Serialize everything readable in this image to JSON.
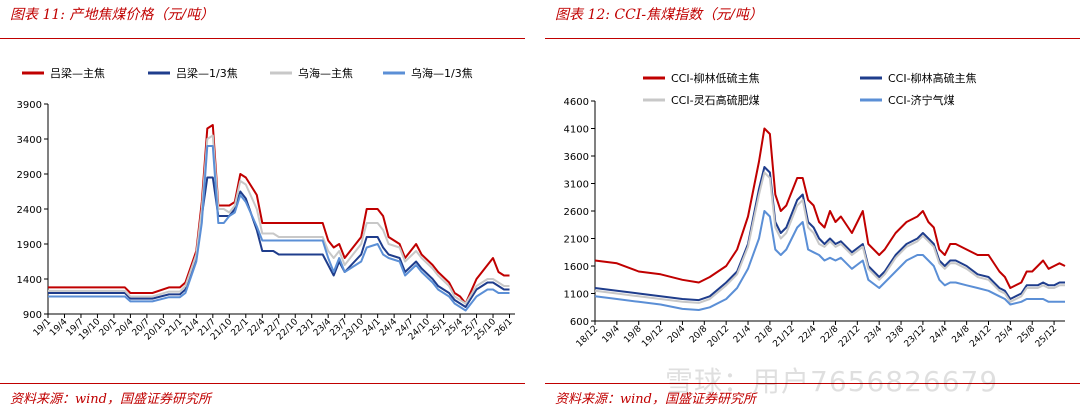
{
  "panels": {
    "left": {
      "title": "图表 11:  产地焦煤价格（元/吨）",
      "source": "资料来源：wind，国盛证券研究所"
    },
    "right": {
      "title": "图表 12:  CCI-焦煤指数（元/吨）",
      "source": "资料来源：wind，国盛证券研究所"
    }
  },
  "watermark": "雪球：用户7656826679",
  "chart_data": [
    {
      "type": "line",
      "grid": false,
      "legend": "top",
      "ylim": [
        900,
        3900
      ],
      "yticks": [
        900,
        1400,
        1900,
        2400,
        2900,
        3400,
        3900
      ],
      "x_tick_labels": [
        "19/1",
        "19/4",
        "19/7",
        "19/10",
        "20/1",
        "20/4",
        "20/7",
        "20/10",
        "21/1",
        "21/4",
        "21/7",
        "21/10",
        "22/1",
        "22/4",
        "22/7",
        "22/10",
        "23/1",
        "23/4",
        "23/7",
        "23/10",
        "24/1",
        "24/4",
        "24/7",
        "24/10",
        "25/1",
        "25/4",
        "25/7",
        "25/10",
        "26/1"
      ],
      "x_tick_index": [
        0,
        3,
        6,
        9,
        12,
        15,
        18,
        21,
        24,
        27,
        30,
        33,
        36,
        39,
        42,
        45,
        48,
        51,
        54,
        57,
        60,
        63,
        66,
        69,
        72,
        75,
        78,
        81,
        84
      ],
      "x_range": [
        0,
        85
      ],
      "series": [
        {
          "name": "吕梁—主焦",
          "color": "#c00000",
          "x": [
            0,
            14,
            15,
            19,
            22,
            24,
            25,
            27,
            28,
            29,
            30,
            31,
            32,
            33,
            34,
            35,
            36,
            38,
            39,
            41,
            42,
            45,
            48,
            50,
            51,
            52,
            53,
            54,
            57,
            58,
            60,
            61,
            62,
            64,
            65,
            67,
            68,
            70,
            71,
            73,
            74,
            75,
            76,
            78,
            79,
            80,
            81,
            82,
            83,
            84
          ],
          "y": [
            1280,
            1280,
            1200,
            1200,
            1280,
            1280,
            1350,
            1800,
            2500,
            3550,
            3600,
            2450,
            2450,
            2450,
            2500,
            2900,
            2850,
            2600,
            2200,
            2200,
            2200,
            2200,
            2200,
            2200,
            1950,
            1850,
            1900,
            1700,
            2000,
            2400,
            2400,
            2300,
            2000,
            1900,
            1700,
            1900,
            1750,
            1600,
            1500,
            1350,
            1200,
            1150,
            1050,
            1400,
            1500,
            1600,
            1700,
            1500,
            1450,
            1450
          ]
        },
        {
          "name": "吕梁—1/3焦",
          "color": "#1f3d8c",
          "x": [
            0,
            14,
            15,
            19,
            22,
            24,
            25,
            27,
            28,
            29,
            30,
            31,
            32,
            33,
            34,
            35,
            36,
            38,
            39,
            41,
            42,
            45,
            48,
            50,
            51,
            52,
            53,
            54,
            57,
            58,
            60,
            61,
            62,
            64,
            65,
            67,
            68,
            70,
            71,
            73,
            74,
            75,
            76,
            78,
            79,
            80,
            81,
            82,
            83,
            84
          ],
          "y": [
            1200,
            1200,
            1120,
            1120,
            1180,
            1180,
            1250,
            1700,
            2300,
            2850,
            2850,
            2300,
            2300,
            2300,
            2400,
            2650,
            2550,
            2100,
            1800,
            1800,
            1750,
            1750,
            1750,
            1750,
            1600,
            1450,
            1650,
            1500,
            1750,
            2000,
            2000,
            1850,
            1750,
            1700,
            1500,
            1650,
            1550,
            1400,
            1300,
            1200,
            1100,
            1050,
            1000,
            1250,
            1300,
            1350,
            1350,
            1300,
            1250,
            1250
          ]
        },
        {
          "name": "乌海—主焦",
          "color": "#c8c8c8",
          "x": [
            0,
            14,
            15,
            19,
            22,
            24,
            25,
            27,
            28,
            29,
            30,
            31,
            32,
            33,
            34,
            35,
            36,
            38,
            39,
            41,
            42,
            45,
            48,
            50,
            51,
            52,
            53,
            54,
            57,
            58,
            60,
            61,
            62,
            64,
            65,
            67,
            68,
            70,
            71,
            73,
            74,
            75,
            76,
            78,
            79,
            80,
            81,
            82,
            83,
            84
          ],
          "y": [
            1230,
            1230,
            1150,
            1150,
            1220,
            1220,
            1300,
            1750,
            2400,
            3400,
            3450,
            2400,
            2400,
            2350,
            2450,
            2800,
            2750,
            2400,
            2050,
            2050,
            2000,
            2000,
            2000,
            2000,
            1800,
            1700,
            1800,
            1600,
            1900,
            2200,
            2200,
            2100,
            1900,
            1850,
            1650,
            1800,
            1700,
            1550,
            1450,
            1300,
            1150,
            1100,
            1050,
            1300,
            1350,
            1400,
            1400,
            1350,
            1300,
            1300
          ]
        },
        {
          "name": "乌海—1/3焦",
          "color": "#5b8fd6",
          "x": [
            0,
            14,
            15,
            19,
            22,
            24,
            25,
            27,
            28,
            29,
            30,
            31,
            32,
            33,
            34,
            35,
            36,
            38,
            39,
            41,
            42,
            45,
            48,
            50,
            51,
            52,
            53,
            54,
            57,
            58,
            60,
            61,
            62,
            64,
            65,
            67,
            68,
            70,
            71,
            73,
            74,
            75,
            76,
            78,
            79,
            80,
            81,
            82,
            83,
            84
          ],
          "y": [
            1150,
            1150,
            1080,
            1080,
            1140,
            1140,
            1200,
            1650,
            2200,
            3300,
            3300,
            2200,
            2200,
            2300,
            2350,
            2600,
            2500,
            2150,
            1950,
            1950,
            1950,
            1950,
            1950,
            1950,
            1700,
            1500,
            1700,
            1500,
            1650,
            1850,
            1900,
            1750,
            1700,
            1650,
            1450,
            1600,
            1500,
            1350,
            1250,
            1150,
            1050,
            1000,
            950,
            1150,
            1200,
            1250,
            1250,
            1200,
            1200,
            1200
          ]
        }
      ]
    },
    {
      "type": "line",
      "grid": false,
      "legend": "top",
      "ylim": [
        600,
        4600
      ],
      "yticks": [
        600,
        1100,
        1600,
        2100,
        2600,
        3100,
        3600,
        4100,
        4600
      ],
      "x_tick_labels": [
        "18/12",
        "19/4",
        "19/8",
        "19/12",
        "20/4",
        "20/8",
        "20/12",
        "21/4",
        "21/8",
        "21/12",
        "22/4",
        "22/8",
        "22/12",
        "23/4",
        "23/8",
        "23/12",
        "24/4",
        "24/8",
        "24/12",
        "25/4",
        "25/8",
        "25/12"
      ],
      "x_tick_index": [
        0,
        4,
        8,
        12,
        16,
        20,
        24,
        28,
        32,
        36,
        40,
        44,
        48,
        52,
        56,
        60,
        64,
        68,
        72,
        76,
        80,
        84
      ],
      "x_range": [
        0,
        86
      ],
      "series": [
        {
          "name": "CCI-柳林低硫主焦",
          "color": "#c00000",
          "x": [
            0,
            4,
            8,
            12,
            16,
            19,
            21,
            24,
            26,
            28,
            30,
            31,
            32,
            33,
            34,
            35,
            37,
            38,
            39,
            40,
            41,
            42,
            43,
            44,
            45,
            47,
            49,
            50,
            52,
            53,
            55,
            57,
            59,
            60,
            61,
            62,
            63,
            64,
            65,
            66,
            68,
            70,
            72,
            74,
            75,
            76,
            78,
            79,
            80,
            81,
            82,
            83,
            84,
            85,
            86
          ],
          "y": [
            1700,
            1650,
            1500,
            1450,
            1350,
            1300,
            1400,
            1600,
            1900,
            2500,
            3500,
            4100,
            4000,
            2900,
            2600,
            2700,
            3200,
            3200,
            2800,
            2700,
            2400,
            2300,
            2600,
            2400,
            2500,
            2200,
            2600,
            2000,
            1800,
            1900,
            2200,
            2400,
            2500,
            2600,
            2400,
            2300,
            1900,
            1800,
            2000,
            2000,
            1900,
            1800,
            1800,
            1500,
            1400,
            1200,
            1300,
            1500,
            1500,
            1600,
            1700,
            1550,
            1600,
            1650,
            1600
          ]
        },
        {
          "name": "CCI-柳林高硫主焦",
          "color": "#1f3d8c",
          "x": [
            0,
            4,
            8,
            12,
            16,
            19,
            21,
            24,
            26,
            28,
            30,
            31,
            32,
            33,
            34,
            35,
            37,
            38,
            39,
            40,
            41,
            42,
            43,
            44,
            45,
            47,
            49,
            50,
            52,
            53,
            55,
            57,
            59,
            60,
            61,
            62,
            63,
            64,
            65,
            66,
            68,
            70,
            72,
            74,
            75,
            76,
            78,
            79,
            80,
            81,
            82,
            83,
            84,
            85,
            86
          ],
          "y": [
            1200,
            1150,
            1100,
            1050,
            1000,
            980,
            1050,
            1300,
            1500,
            2000,
            3000,
            3400,
            3300,
            2400,
            2200,
            2300,
            2800,
            2900,
            2400,
            2300,
            2100,
            2000,
            2100,
            2000,
            2050,
            1850,
            2000,
            1600,
            1400,
            1500,
            1800,
            2000,
            2100,
            2200,
            2100,
            2000,
            1700,
            1600,
            1700,
            1700,
            1600,
            1450,
            1400,
            1200,
            1150,
            1000,
            1100,
            1250,
            1250,
            1250,
            1300,
            1250,
            1250,
            1300,
            1300
          ]
        },
        {
          "name": "CCI-灵石高硫肥煤",
          "color": "#c8c8c8",
          "x": [
            0,
            4,
            8,
            12,
            16,
            19,
            21,
            24,
            26,
            28,
            30,
            31,
            32,
            33,
            34,
            35,
            37,
            38,
            39,
            40,
            41,
            42,
            43,
            44,
            45,
            47,
            49,
            50,
            52,
            53,
            55,
            57,
            59,
            60,
            61,
            62,
            63,
            64,
            65,
            66,
            68,
            70,
            72,
            74,
            75,
            76,
            78,
            79,
            80,
            81,
            82,
            83,
            84,
            85,
            86
          ],
          "y": [
            1150,
            1100,
            1050,
            1000,
            950,
            930,
            1000,
            1250,
            1450,
            1950,
            2900,
            3300,
            3200,
            2300,
            2100,
            2200,
            2700,
            2800,
            2300,
            2200,
            2000,
            1950,
            2050,
            1950,
            2000,
            1800,
            1950,
            1550,
            1350,
            1450,
            1750,
            1950,
            2050,
            2150,
            2050,
            1950,
            1650,
            1550,
            1650,
            1650,
            1550,
            1400,
            1350,
            1150,
            1100,
            950,
            1050,
            1200,
            1200,
            1200,
            1250,
            1200,
            1200,
            1250,
            1250
          ]
        },
        {
          "name": "CCI-济宁气煤",
          "color": "#5b8fd6",
          "x": [
            0,
            4,
            8,
            12,
            16,
            19,
            21,
            24,
            26,
            28,
            30,
            31,
            32,
            33,
            34,
            35,
            37,
            38,
            39,
            40,
            41,
            42,
            43,
            44,
            45,
            47,
            49,
            50,
            52,
            53,
            55,
            57,
            59,
            60,
            61,
            62,
            63,
            64,
            65,
            66,
            68,
            70,
            72,
            74,
            75,
            76,
            78,
            79,
            80,
            81,
            82,
            83,
            84,
            85,
            86
          ],
          "y": [
            1050,
            1000,
            950,
            900,
            820,
            800,
            850,
            1000,
            1200,
            1550,
            2100,
            2600,
            2500,
            1900,
            1800,
            1900,
            2300,
            2400,
            1900,
            1850,
            1800,
            1700,
            1750,
            1700,
            1750,
            1550,
            1700,
            1350,
            1200,
            1300,
            1500,
            1700,
            1800,
            1800,
            1700,
            1600,
            1350,
            1250,
            1300,
            1300,
            1250,
            1200,
            1150,
            1050,
            1000,
            900,
            950,
            1000,
            1000,
            1000,
            1000,
            950,
            950,
            950,
            950
          ]
        }
      ]
    }
  ]
}
